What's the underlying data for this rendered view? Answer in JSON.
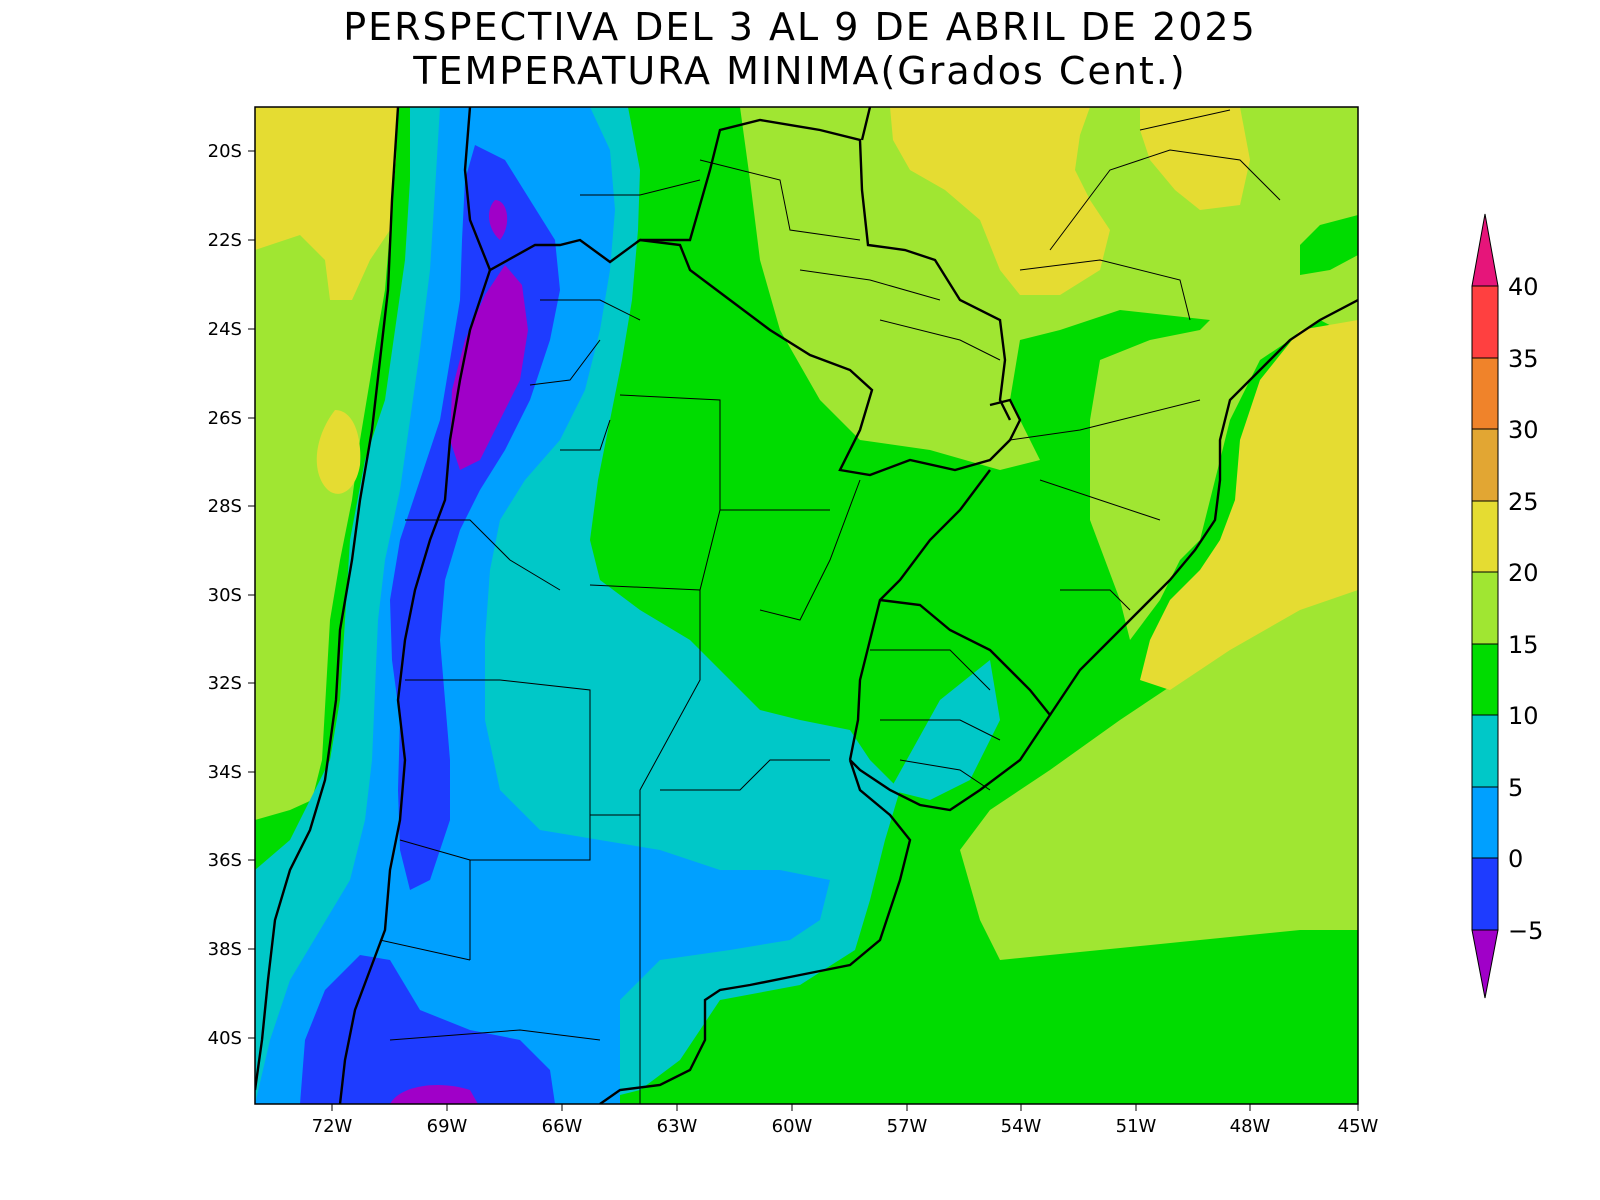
{
  "title_line1": "PERSPECTIVA DEL 3 AL 9 DE ABRIL DE 2025",
  "title_line2": "TEMPERATURA MINIMA(Grados Cent.)",
  "lat_labels": [
    "20S",
    "22S",
    "24S",
    "26S",
    "28S",
    "30S",
    "32S",
    "34S",
    "36S",
    "38S",
    "40S"
  ],
  "lon_labels": [
    "72W",
    "69W",
    "66W",
    "63W",
    "60W",
    "57W",
    "54W",
    "51W",
    "48W",
    "45W"
  ],
  "colorbar": {
    "labels": [
      "40",
      "35",
      "30",
      "25",
      "20",
      "15",
      "10",
      "5",
      "0",
      "−5"
    ],
    "colors": {
      "above_40": "#e6157a",
      "35_40": "#ff4040",
      "30_35": "#f0832a",
      "25_30": "#e2a633",
      "20_25": "#e5dc32",
      "15_20": "#a0e632",
      "10_15": "#00dc00",
      "5_10": "#00c8c8",
      "0_5": "#00a0ff",
      "m5_0": "#1e3cff",
      "below_m5": "#a000c8"
    }
  },
  "map_extent": {
    "lon_min": -73.8,
    "lon_max": -45,
    "lat_min": -41.5,
    "lat_max": -19
  }
}
